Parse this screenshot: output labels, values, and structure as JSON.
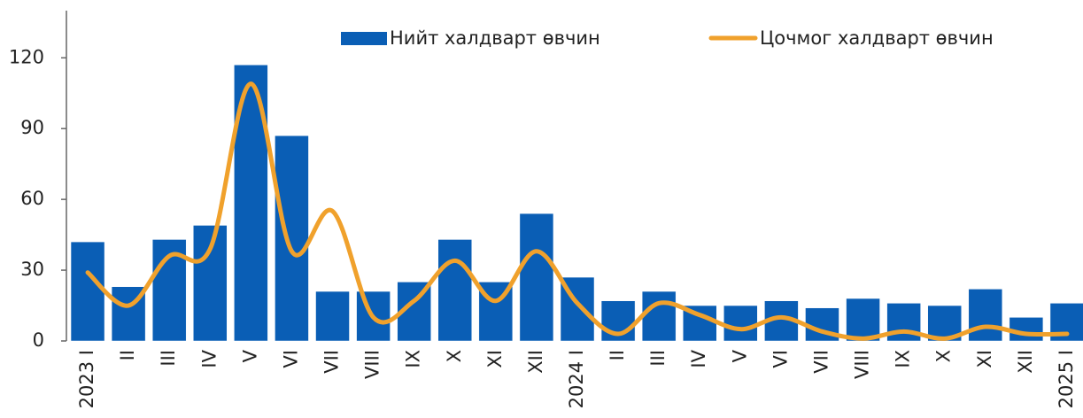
{
  "chart_data": {
    "type": "bar",
    "categories": [
      "2023 I",
      "II",
      "III",
      "IV",
      "V",
      "VI",
      "VII",
      "VIII",
      "IX",
      "X",
      "XI",
      "XII",
      "2024 I",
      "II",
      "III",
      "IV",
      "V",
      "VI",
      "VII",
      "VIII",
      "IX",
      "X",
      "XI",
      "XII",
      "2025 I"
    ],
    "series": [
      {
        "name": "Нийт халдварт өвчин",
        "type": "bar",
        "color": "#0a5eb5",
        "values": [
          42,
          23,
          43,
          49,
          117,
          87,
          21,
          21,
          25,
          43,
          25,
          54,
          27,
          17,
          21,
          15,
          15,
          17,
          14,
          18,
          16,
          15,
          22,
          10,
          16
        ]
      },
      {
        "name": "Цочмог халдварт өвчин",
        "type": "line",
        "color": "#f0a12c",
        "values": [
          29,
          15,
          36,
          39,
          109,
          38,
          55,
          10,
          17,
          34,
          17,
          38,
          16,
          3,
          16,
          11,
          5,
          10,
          4,
          1,
          4,
          1,
          6,
          3,
          3
        ]
      }
    ],
    "ylim": [
      0,
      140
    ],
    "yticks": [
      0,
      30,
      60,
      90,
      120
    ],
    "grid": false
  }
}
